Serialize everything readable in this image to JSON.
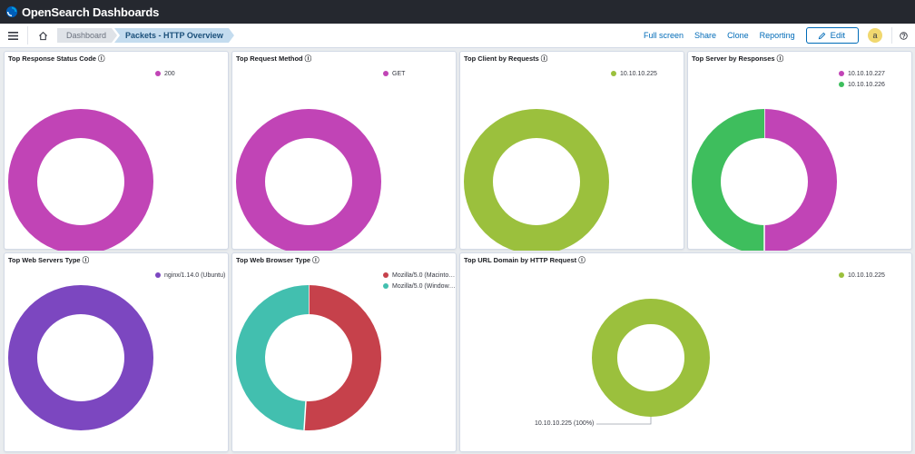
{
  "app": {
    "brand": "OpenSearch Dashboards"
  },
  "breadcrumbs": [
    "Dashboard",
    "Packets - HTTP Overview"
  ],
  "actions": {
    "full_screen": "Full screen",
    "share": "Share",
    "clone": "Clone",
    "reporting": "Reporting",
    "edit": "Edit"
  },
  "user": {
    "avatar_letter": "a"
  },
  "icons": [
    "menu-icon",
    "home-icon",
    "pencil-icon",
    "help-icon",
    "info-icon"
  ],
  "colors": {
    "magenta": "#c144b6",
    "lime": "#9bc03d",
    "green": "#3ebe5d",
    "purple": "#7c47c0",
    "red": "#c6414b",
    "teal": "#42bfaf"
  },
  "panels": [
    {
      "title": "Top Response Status Code",
      "legend": [
        {
          "label": "200",
          "color": "#c144b6"
        }
      ],
      "chart_data": {
        "type": "pie",
        "donut": true,
        "categories": [
          "200"
        ],
        "values": [
          100
        ],
        "colors": [
          "#c144b6"
        ]
      }
    },
    {
      "title": "Top Request Method",
      "legend": [
        {
          "label": "GET",
          "color": "#c144b6"
        }
      ],
      "chart_data": {
        "type": "pie",
        "donut": true,
        "categories": [
          "GET"
        ],
        "values": [
          100
        ],
        "colors": [
          "#c144b6"
        ]
      }
    },
    {
      "title": "Top Client by Requests",
      "legend": [
        {
          "label": "10.10.10.225",
          "color": "#9bc03d"
        }
      ],
      "chart_data": {
        "type": "pie",
        "donut": true,
        "categories": [
          "10.10.10.225"
        ],
        "values": [
          100
        ],
        "colors": [
          "#9bc03d"
        ]
      }
    },
    {
      "title": "Top Server by Responses",
      "legend": [
        {
          "label": "10.10.10.227",
          "color": "#c144b6"
        },
        {
          "label": "10.10.10.226",
          "color": "#3ebe5d"
        }
      ],
      "chart_data": {
        "type": "pie",
        "donut": true,
        "categories": [
          "10.10.10.227",
          "10.10.10.226"
        ],
        "values": [
          50,
          50
        ],
        "colors": [
          "#c144b6",
          "#3ebe5d"
        ]
      }
    },
    {
      "title": "Top Web Servers Type",
      "legend": [
        {
          "label": "nginx/1.14.0 (Ubuntu)",
          "color": "#7c47c0"
        }
      ],
      "chart_data": {
        "type": "pie",
        "donut": true,
        "categories": [
          "nginx/1.14.0 (Ubuntu)"
        ],
        "values": [
          100
        ],
        "colors": [
          "#7c47c0"
        ]
      }
    },
    {
      "title": "Top Web Browser Type",
      "legend": [
        {
          "label": "Mozilla/5.0 (Macinto…",
          "color": "#c6414b"
        },
        {
          "label": "Mozilla/5.0 (Window…",
          "color": "#42bfaf"
        }
      ],
      "chart_data": {
        "type": "pie",
        "donut": true,
        "categories": [
          "Mozilla/5.0 (Macinto…",
          "Mozilla/5.0 (Window…"
        ],
        "values": [
          51,
          49
        ],
        "colors": [
          "#c6414b",
          "#42bfaf"
        ]
      }
    },
    {
      "title": "Top URL Domain by HTTP Request",
      "legend": [
        {
          "label": "10.10.10.225",
          "color": "#9bc03d"
        }
      ],
      "callout": "10.10.10.225 (100%)",
      "chart_data": {
        "type": "pie",
        "donut": true,
        "categories": [
          "10.10.10.225"
        ],
        "values": [
          100
        ],
        "colors": [
          "#9bc03d"
        ]
      }
    }
  ]
}
